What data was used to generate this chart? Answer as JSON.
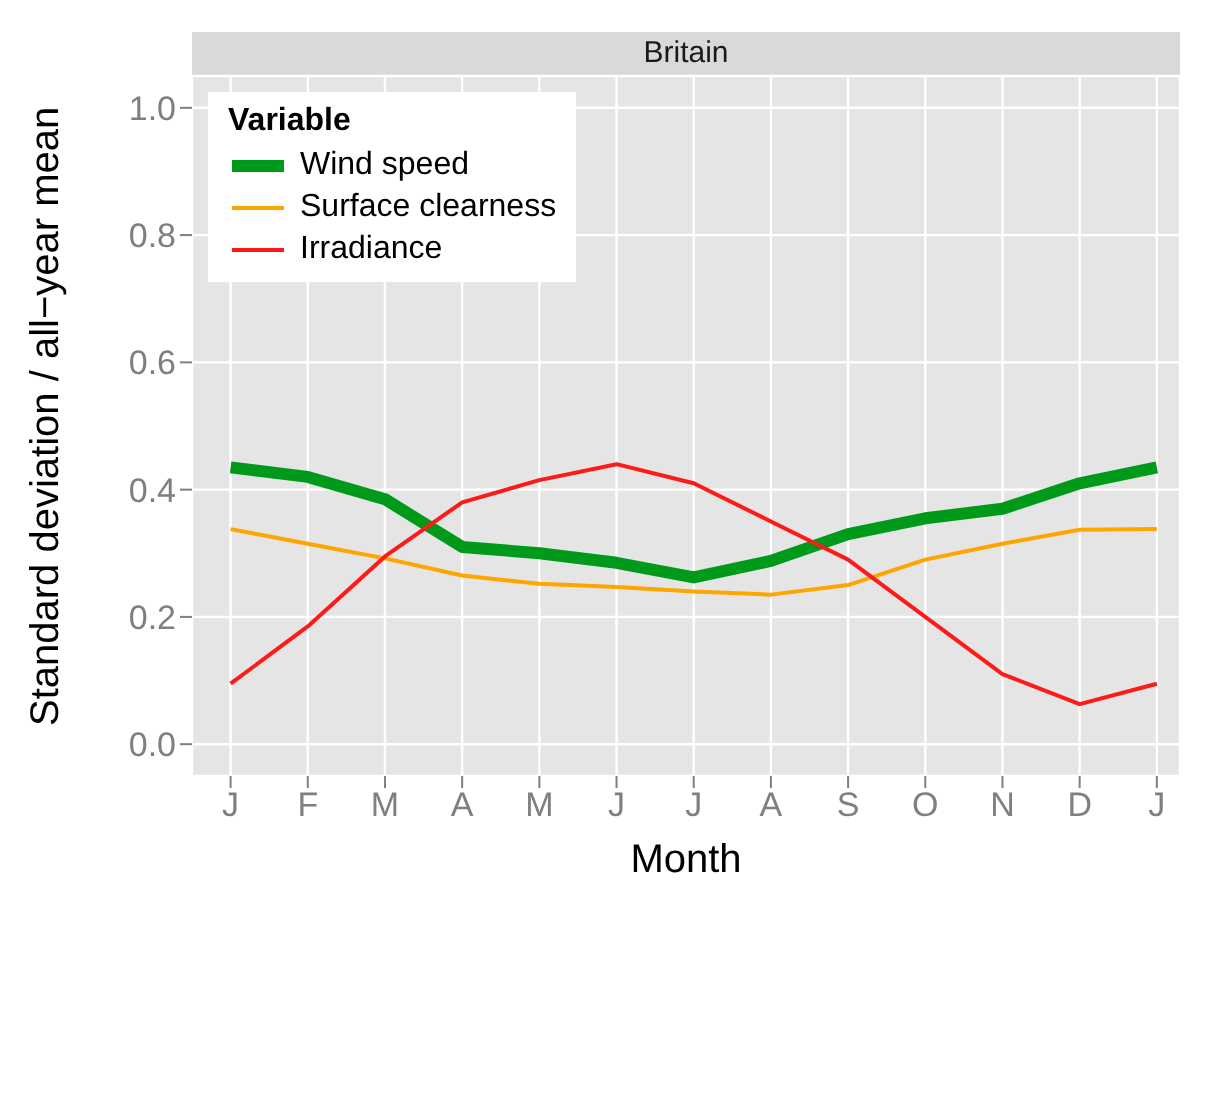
{
  "chart_data": {
    "type": "line",
    "title": "Britain",
    "xlabel": "Month",
    "ylabel": "Standard deviation / all−year mean",
    "categories": [
      "J",
      "F",
      "M",
      "A",
      "M",
      "J",
      "J",
      "A",
      "S",
      "O",
      "N",
      "D",
      "J"
    ],
    "legend_title": "Variable",
    "legend": "top left",
    "grid": true,
    "marker": "none",
    "ylim": [
      -0.05,
      1.05
    ],
    "yticks": [
      {
        "value": 0,
        "label": "0.0"
      },
      0.2,
      0.4,
      0.6,
      0.8,
      {
        "value": 1,
        "label": "1.0"
      }
    ],
    "series": [
      {
        "name": "Wind speed",
        "color": "#009a1a",
        "values": [
          0.435,
          0.42,
          0.385,
          0.31,
          0.3,
          0.285,
          0.262,
          0.288,
          0.33,
          0.355,
          0.37,
          0.41,
          0.435
        ]
      },
      {
        "name": "Surface clearness",
        "color": "#ffa500",
        "values": [
          0.338,
          0.315,
          0.292,
          0.265,
          0.252,
          0.247,
          0.24,
          0.235,
          0.25,
          0.29,
          0.315,
          0.337,
          0.338
        ]
      },
      {
        "name": "Irradiance",
        "color": "#ff1a1a",
        "values": [
          0.095,
          0.185,
          0.295,
          0.38,
          0.415,
          0.44,
          0.41,
          0.35,
          0.29,
          0.2,
          0.11,
          0.063,
          0.095
        ]
      }
    ]
  }
}
